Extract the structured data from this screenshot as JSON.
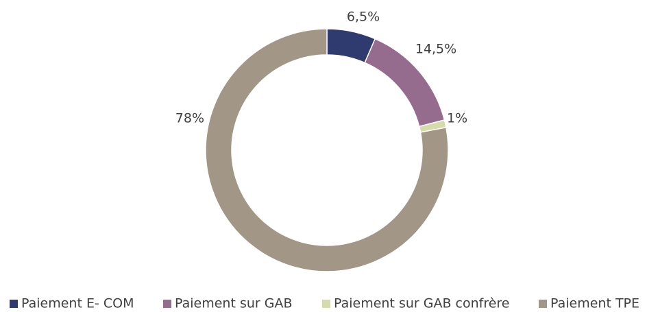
{
  "chart_data": {
    "type": "pie",
    "categories": [
      "Paiement E- COM",
      "Paiement sur GAB",
      "Paiement sur GAB confrère",
      "Paiement TPE"
    ],
    "values": [
      6.5,
      14.5,
      1,
      78
    ],
    "value_labels": [
      "6,5%",
      "14,5%",
      "1%",
      "78%"
    ],
    "colors": [
      "#2f3a6f",
      "#956b8e",
      "#d5dba9",
      "#a29686"
    ],
    "legend": "bottom"
  }
}
